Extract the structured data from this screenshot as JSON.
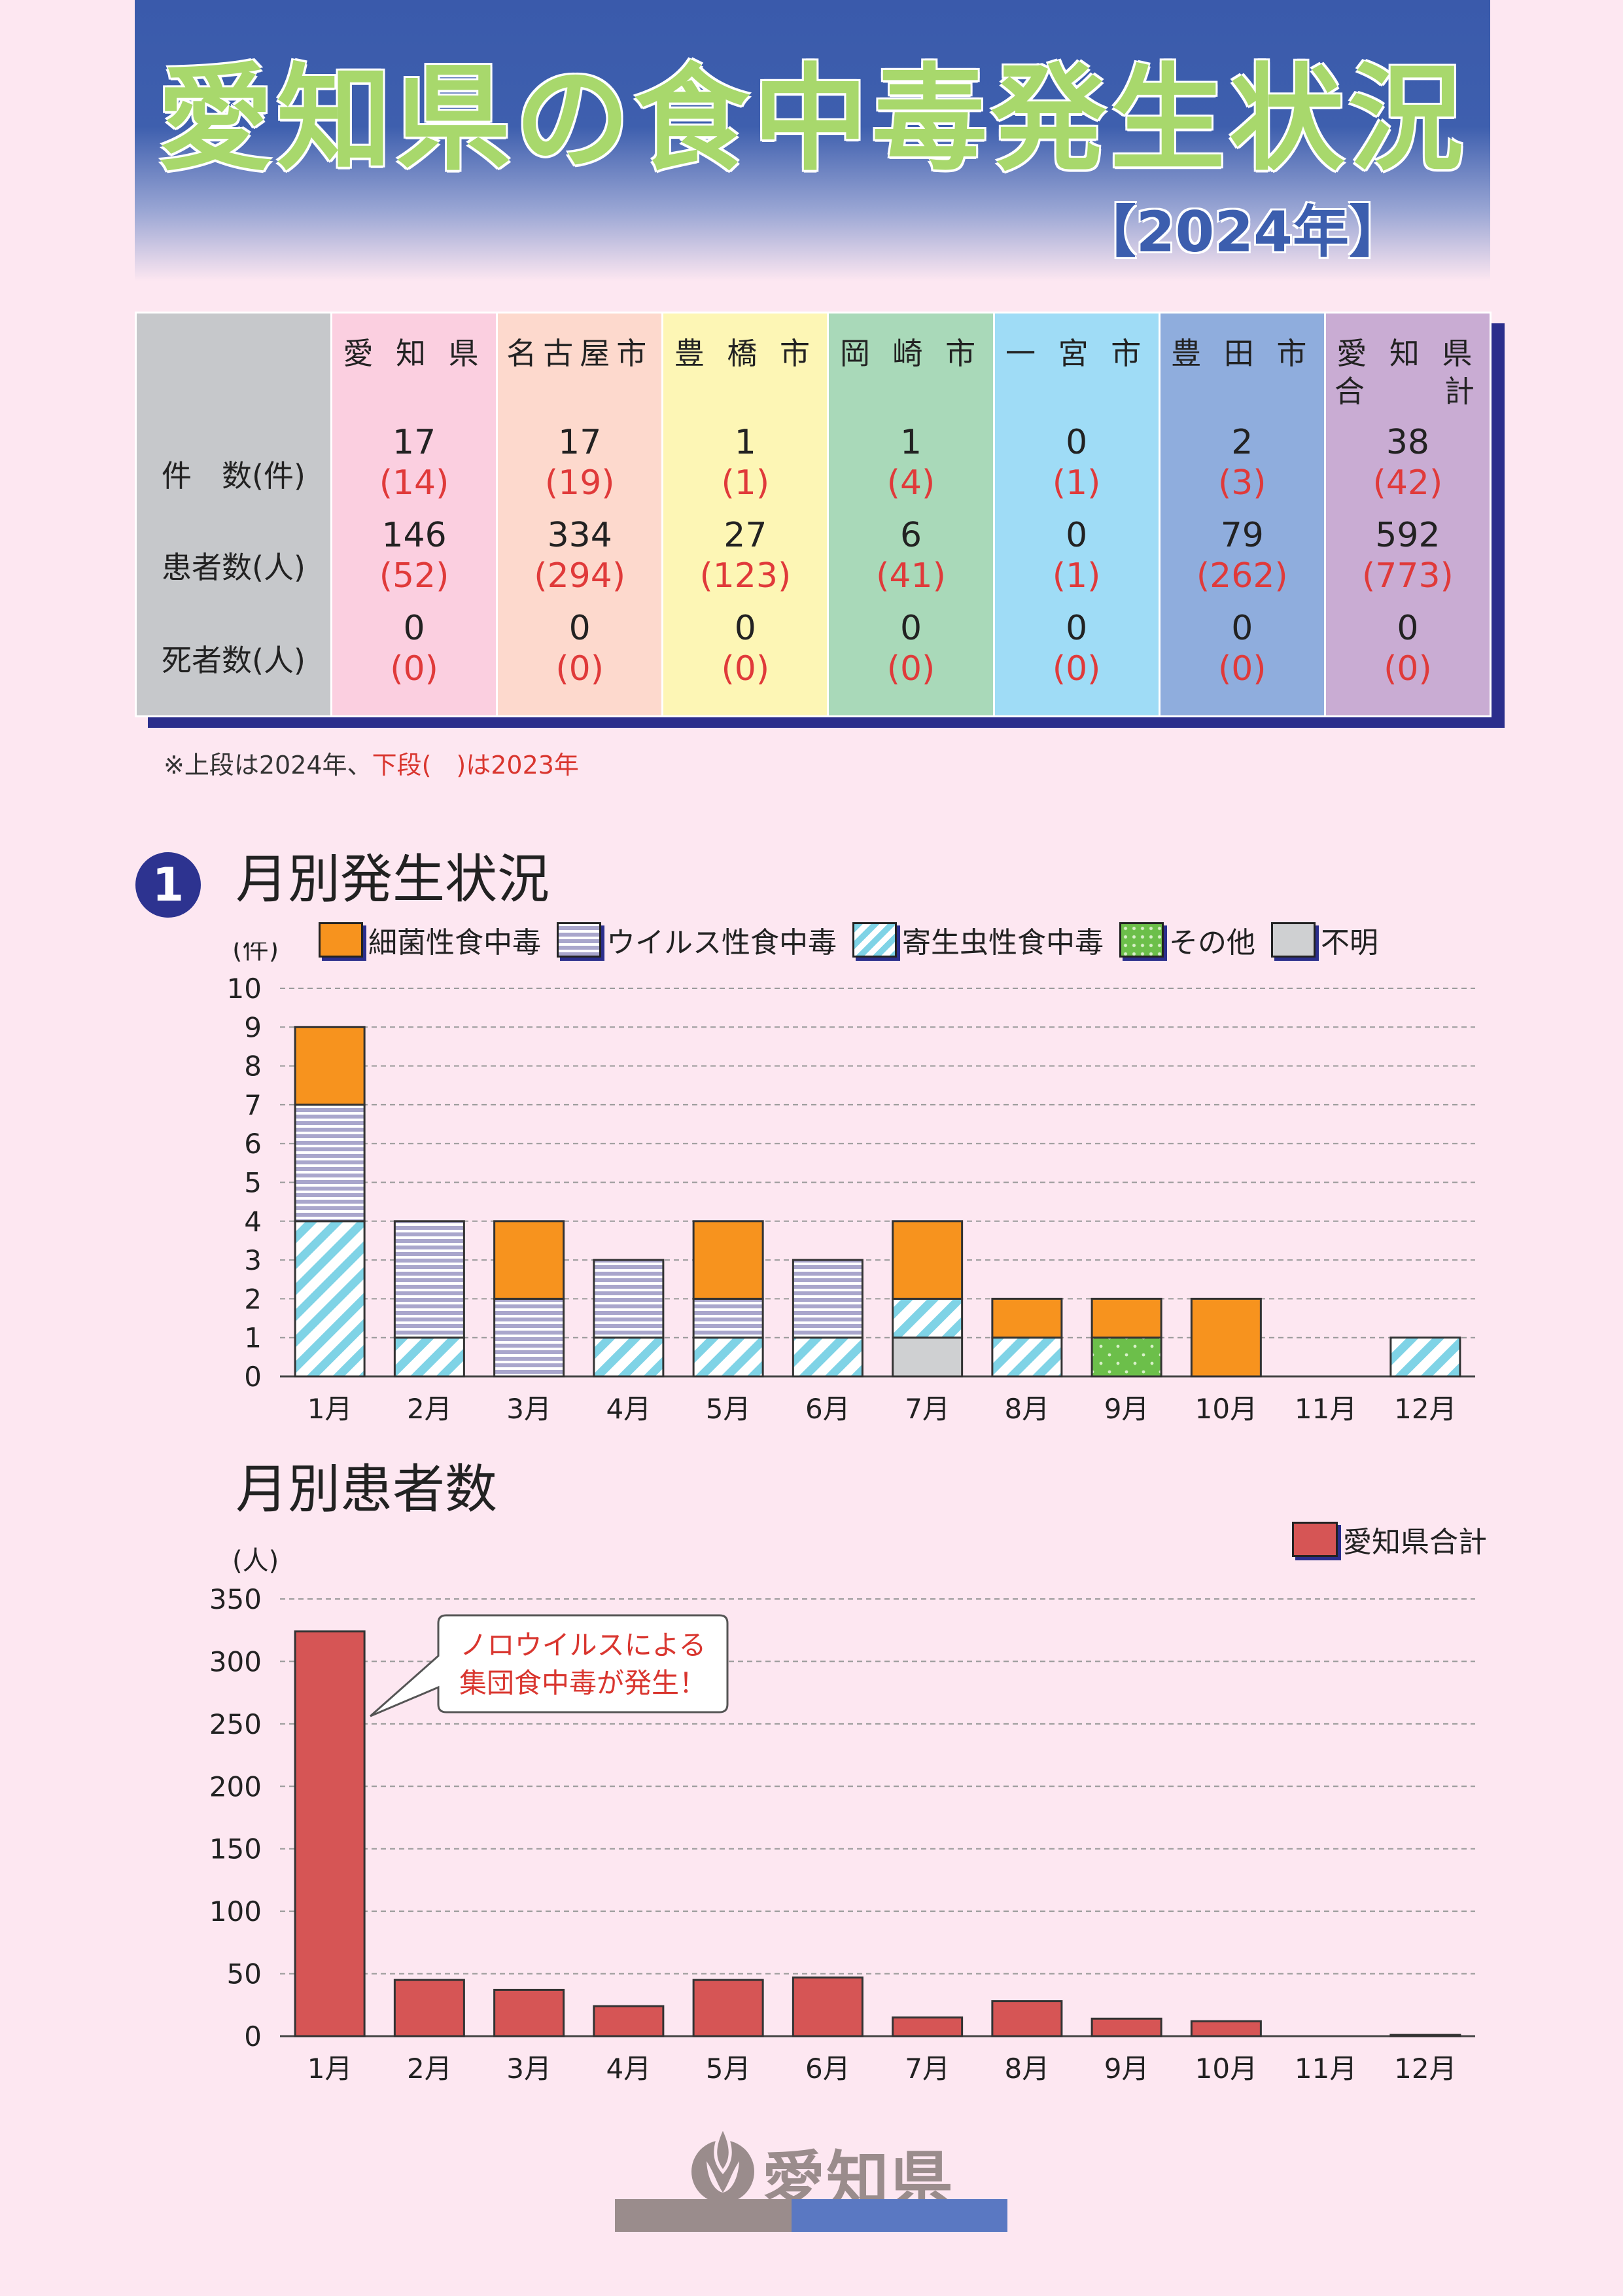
{
  "header": {
    "title": "愛知県の食中毒発生状況",
    "year": "【2024年】"
  },
  "summary": {
    "row_labels": [
      "件　数(件)",
      "患者数(人)",
      "死者数(人)"
    ],
    "columns": [
      {
        "name": "愛 知 県",
        "color": "#fbcfe0",
        "cases": "17",
        "cases_prev": "(14)",
        "patients": "146",
        "patients_prev": "(52)",
        "deaths": "0",
        "deaths_prev": "(0)"
      },
      {
        "name": "名古屋市",
        "color": "#fdd9cd",
        "cases": "17",
        "cases_prev": "(19)",
        "patients": "334",
        "patients_prev": "(294)",
        "deaths": "0",
        "deaths_prev": "(0)"
      },
      {
        "name": "豊 橋 市",
        "color": "#fdf6b5",
        "cases": "1",
        "cases_prev": "(1)",
        "patients": "27",
        "patients_prev": "(123)",
        "deaths": "0",
        "deaths_prev": "(0)"
      },
      {
        "name": "岡 崎 市",
        "color": "#a9d9b9",
        "cases": "1",
        "cases_prev": "(4)",
        "patients": "6",
        "patients_prev": "(41)",
        "deaths": "0",
        "deaths_prev": "(0)"
      },
      {
        "name": "一 宮 市",
        "color": "#9fdcf6",
        "cases": "0",
        "cases_prev": "(1)",
        "patients": "0",
        "patients_prev": "(1)",
        "deaths": "0",
        "deaths_prev": "(0)"
      },
      {
        "name": "豊 田 市",
        "color": "#8faddd",
        "cases": "2",
        "cases_prev": "(3)",
        "patients": "79",
        "patients_prev": "(262)",
        "deaths": "0",
        "deaths_prev": "(0)"
      },
      {
        "name": "愛 知 県\n合　　計",
        "color": "#c9acd3",
        "cases": "38",
        "cases_prev": "(42)",
        "patients": "592",
        "patients_prev": "(773)",
        "deaths": "0",
        "deaths_prev": "(0)"
      }
    ],
    "note_prefix": "※上段は2024年、",
    "note_red": "下段(　)は2023年"
  },
  "section1": {
    "number": "1",
    "title": "月別発生状況"
  },
  "section2": {
    "title": "月別患者数"
  },
  "chart_data": [
    {
      "type": "bar",
      "stacked": true,
      "title": "月別発生状況",
      "ylabel": "(件)",
      "ylim": [
        0,
        10
      ],
      "yticks": [
        0,
        1,
        2,
        3,
        4,
        5,
        6,
        7,
        8,
        9,
        10
      ],
      "categories": [
        "1月",
        "2月",
        "3月",
        "4月",
        "5月",
        "6月",
        "7月",
        "8月",
        "9月",
        "10月",
        "11月",
        "12月"
      ],
      "series": [
        {
          "name": "不明",
          "key": "unknown",
          "color": "#cfd0d2",
          "values": [
            0,
            0,
            0,
            0,
            0,
            0,
            1,
            0,
            0,
            0,
            0,
            0
          ]
        },
        {
          "name": "その他",
          "key": "other",
          "color": "#6cbf4a",
          "values": [
            0,
            0,
            0,
            0,
            0,
            0,
            0,
            0,
            1,
            0,
            0,
            0
          ]
        },
        {
          "name": "寄生虫性食中毒",
          "key": "parasite",
          "color": "#7fd3e6",
          "values": [
            4,
            1,
            0,
            1,
            1,
            1,
            1,
            1,
            0,
            0,
            0,
            1
          ]
        },
        {
          "name": "ウイルス性食中毒",
          "key": "virus",
          "color": "#a9a6cc",
          "values": [
            3,
            3,
            2,
            2,
            1,
            2,
            0,
            0,
            0,
            0,
            0,
            0
          ]
        },
        {
          "name": "細菌性食中毒",
          "key": "bacteria",
          "color": "#f7931e",
          "values": [
            2,
            0,
            2,
            0,
            2,
            0,
            2,
            1,
            1,
            2,
            0,
            0
          ]
        }
      ],
      "legend_order": [
        "細菌性食中毒",
        "ウイルス性食中毒",
        "寄生虫性食中毒",
        "その他",
        "不明"
      ]
    },
    {
      "type": "bar",
      "title": "月別患者数",
      "ylabel": "(人)",
      "ylim": [
        0,
        350
      ],
      "yticks": [
        0,
        50,
        100,
        150,
        200,
        250,
        300,
        350
      ],
      "categories": [
        "1月",
        "2月",
        "3月",
        "4月",
        "5月",
        "6月",
        "7月",
        "8月",
        "9月",
        "10月",
        "11月",
        "12月"
      ],
      "series": [
        {
          "name": "愛知県合計",
          "color": "#d65555",
          "values": [
            324,
            45,
            37,
            24,
            45,
            47,
            15,
            28,
            14,
            12,
            0,
            1
          ]
        }
      ],
      "annotation": {
        "text_line1": "ノロウイルスによる",
        "text_line2": "集団食中毒が発生！",
        "category": "1月"
      }
    }
  ],
  "logo": {
    "text": "愛知県"
  }
}
